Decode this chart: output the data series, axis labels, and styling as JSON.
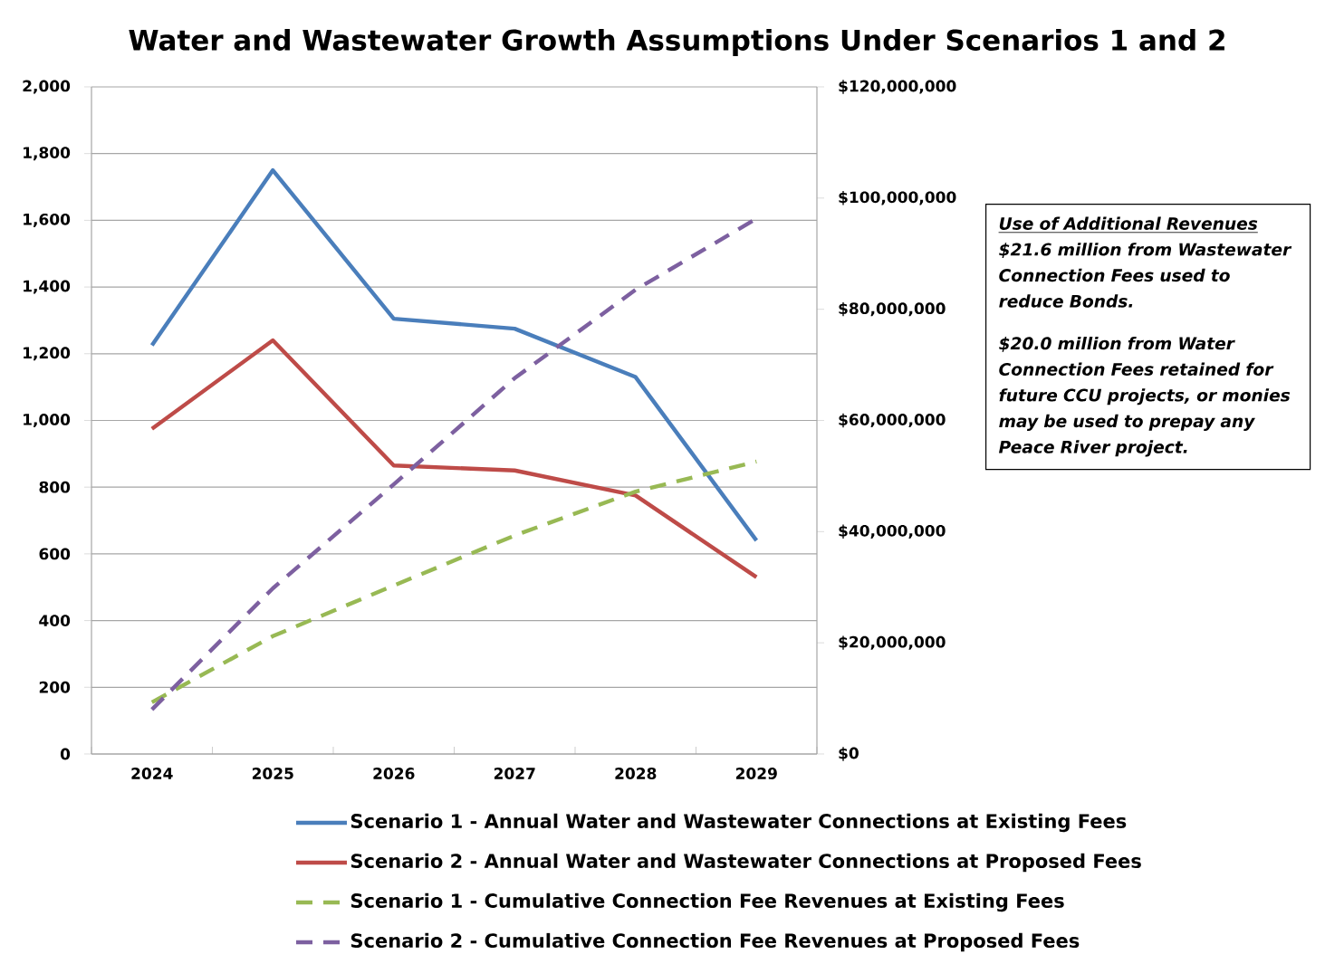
{
  "chart_data": {
    "type": "line",
    "title": "Water and Wastewater Growth Assumptions Under Scenarios 1 and 2",
    "categories": [
      "2024",
      "2025",
      "2026",
      "2027",
      "2028",
      "2029"
    ],
    "series": [
      {
        "name": "Scenario 1 - Annual Water and Wastewater Connections at Existing Fees",
        "color": "#4a7ebb",
        "line_style": "solid",
        "values": [
          1225,
          1750,
          1305,
          1275,
          1130,
          640
        ]
      },
      {
        "name": "Scenario 2 - Annual Water and Wastewater Connections at Proposed Fees",
        "color": "#be4b48",
        "line_style": "solid",
        "values": [
          975,
          1240,
          865,
          850,
          775,
          530
        ]
      },
      {
        "name": "Scenario 1 - Cumulative Connection Fee Revenues at Existing Fees",
        "color": "#98b954",
        "line_style": "dashed",
        "axis": "y2",
        "values": [
          9300000,
          21200000,
          30300000,
          39300000,
          47200000,
          52600000
        ]
      },
      {
        "name": "Scenario 2 - Cumulative Connection Fee Revenues at Proposed Fees",
        "color": "#7d60a0",
        "line_style": "dashed",
        "axis": "y2",
        "values": [
          8000000,
          29800000,
          48500000,
          67600000,
          83500000,
          96300000
        ]
      }
    ],
    "ylim": [
      0,
      2000
    ],
    "yticks": [
      0,
      200,
      400,
      600,
      800,
      {
        "value": 1000,
        "label": "1,000"
      },
      {
        "value": 1200,
        "label": "1,200"
      },
      {
        "value": 1400,
        "label": "1,400"
      },
      {
        "value": 1600,
        "label": "1,600"
      },
      {
        "value": 1800,
        "label": "1,800"
      },
      {
        "value": 2000,
        "label": "2,000"
      }
    ],
    "y2lim": [
      0,
      120000000
    ],
    "y2ticks": [
      {
        "value": 0,
        "label": "$0"
      },
      {
        "value": 20000000,
        "label": "$20,000,000"
      },
      {
        "value": 40000000,
        "label": "$40,000,000"
      },
      {
        "value": 60000000,
        "label": "$60,000,000"
      },
      {
        "value": 80000000,
        "label": "$80,000,000"
      },
      {
        "value": 100000000,
        "label": "$100,000,000"
      },
      {
        "value": 120000000,
        "label": "$120,000,000"
      }
    ],
    "grid": "y",
    "legend": "bottom",
    "marker": "none",
    "annotations": [
      "Use of Additional Revenues",
      "$21.6 million from Wastewater Connection Fees used to reduce Bonds.",
      "$20.0 million from Water Connection Fees retained for future CCU projects, or monies may be used to prepay any Peace River project."
    ]
  }
}
